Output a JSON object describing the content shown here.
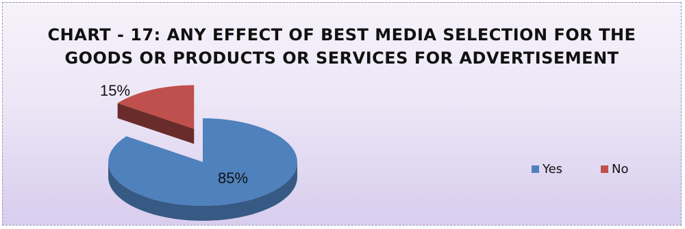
{
  "chart_data": {
    "type": "pie",
    "title": "CHART - 17: ANY EFFECT OF BEST MEDIA SELECTION FOR THE GOODS OR PRODUCTS OR SERVICES FOR ADVERTISEMENT",
    "title_lines": [
      "CHART - 17: ANY EFFECT OF BEST MEDIA SELECTION FOR THE",
      "GOODS OR PRODUCTS OR SERVICES FOR ADVERTISEMENT"
    ],
    "categories": [
      "Yes",
      "No"
    ],
    "values": [
      85,
      15
    ],
    "data_labels": [
      "85%",
      "15%"
    ],
    "colors": [
      "#4f81bd",
      "#c0504d"
    ],
    "legend_position": "right",
    "style": "3d-pie-exploded"
  }
}
